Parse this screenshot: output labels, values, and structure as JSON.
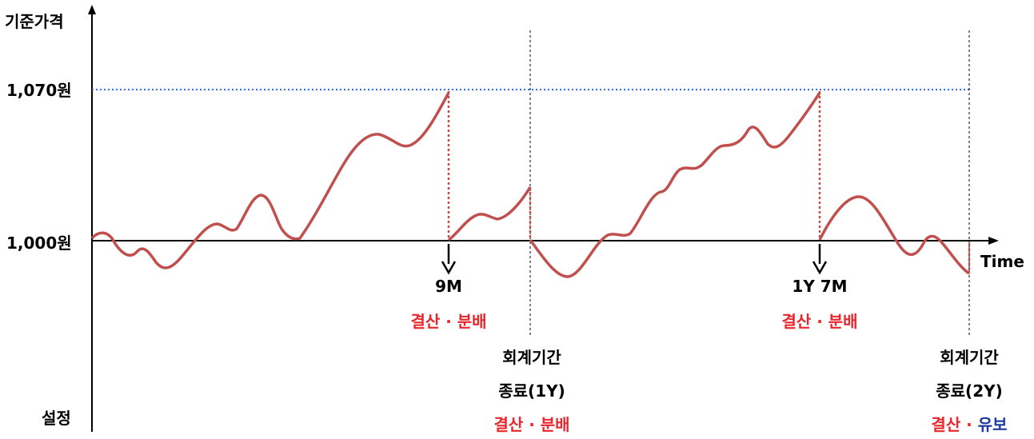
{
  "colors": {
    "curve": "#c0504d",
    "reference_line": "#2f6fe0",
    "axis": "#000000",
    "highlight_red": "#e8262b",
    "highlight_blue": "#1f3a9e"
  },
  "y_axis": {
    "title": "기준가격",
    "bottom_label": "설정",
    "tick_high": "1,070원",
    "tick_base": "1,000원"
  },
  "x_axis": {
    "label": "Time"
  },
  "events": {
    "first": {
      "period": "9M",
      "action": "결산 · 분배"
    },
    "second": {
      "period": "1Y 7M",
      "action": "결산 · 분배"
    }
  },
  "period_ends": {
    "first": {
      "line1": "회계기간",
      "line2": "종료(1Y)",
      "action": "결산 · 분배"
    },
    "second": {
      "line1": "회계기간",
      "line2": "종료(2Y)",
      "action_red": "결산 · ",
      "action_blue": "유보"
    }
  },
  "chart_data": {
    "type": "line",
    "title": "",
    "xlabel": "Time",
    "ylabel": "기준가격",
    "reference_levels": [
      "1,070원",
      "1,000원"
    ],
    "markers": [
      "9M",
      "1Y 7M",
      "종료(1Y)",
      "종료(2Y)"
    ]
  }
}
